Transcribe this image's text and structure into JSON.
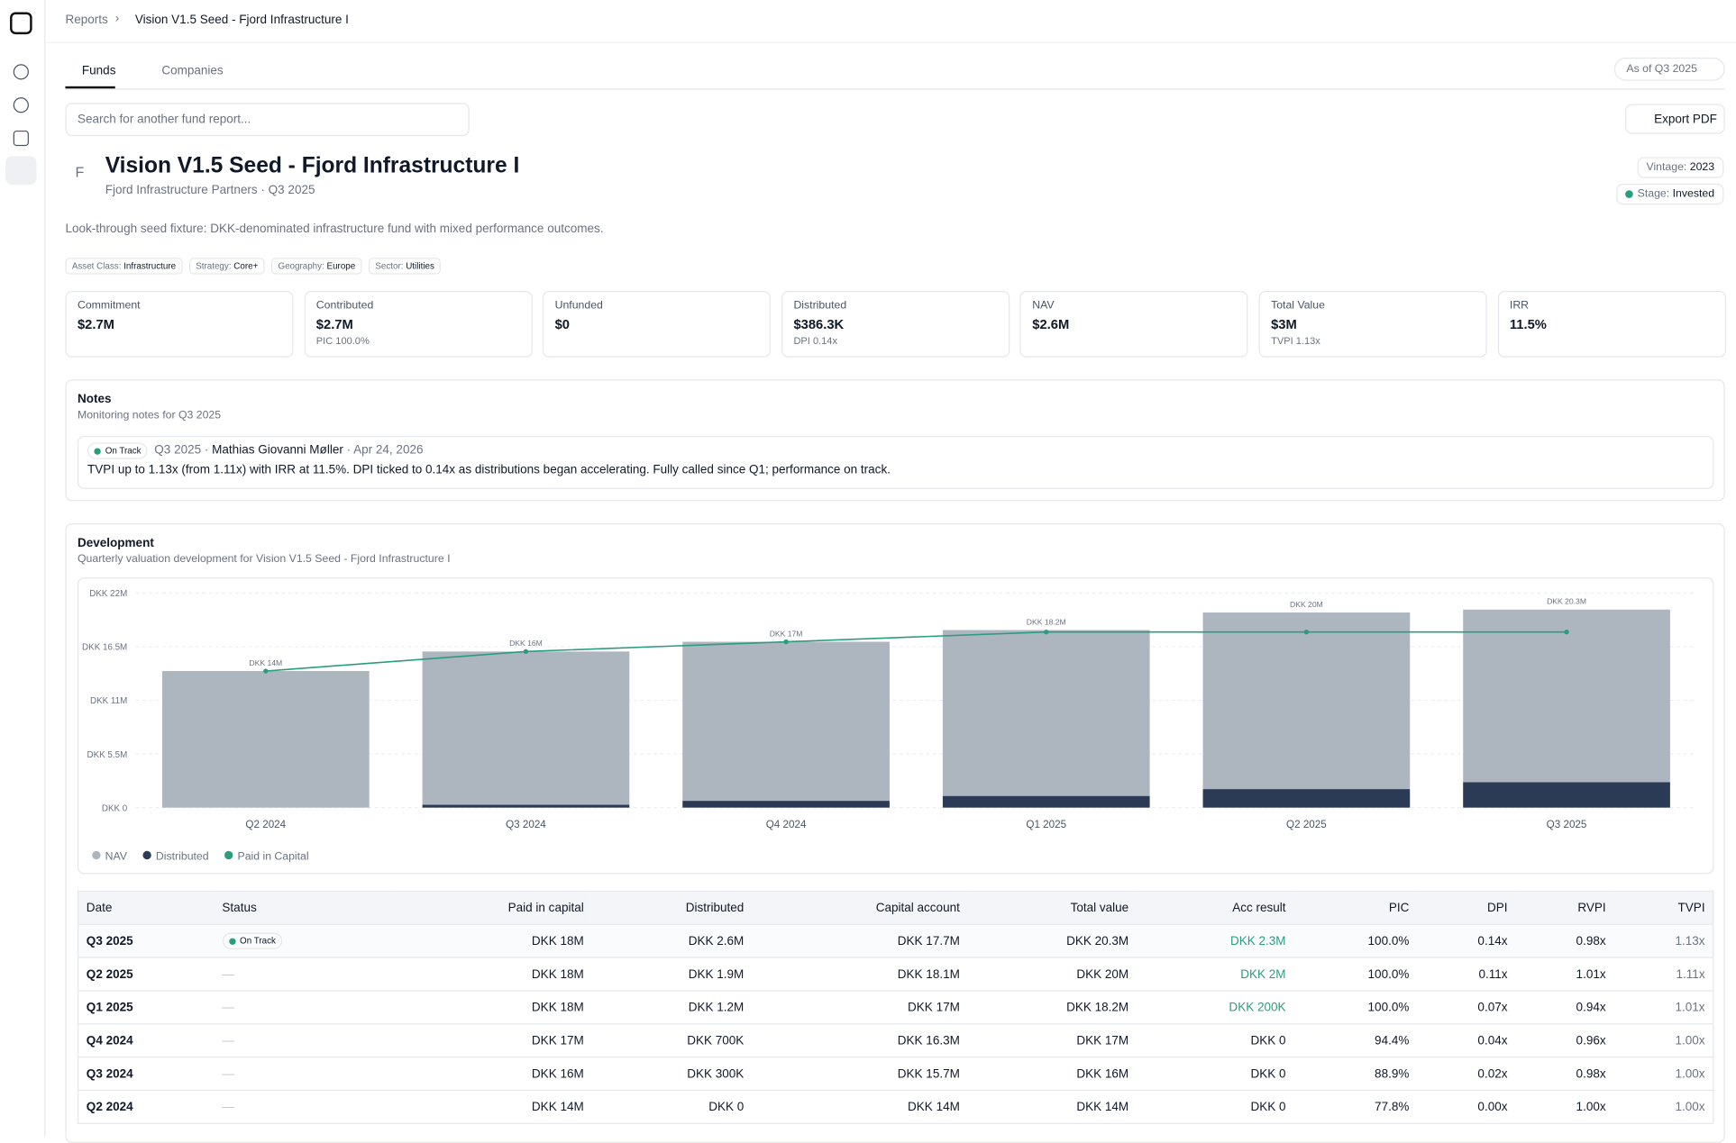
{
  "breadcrumb": [
    "Reports",
    "Vision V1.5 Seed - Fjord Infrastructure I"
  ],
  "tabs": [
    "Funds",
    "Companies"
  ],
  "as_of": "As of Q3 2025",
  "search_placeholder": "Search for another fund report...",
  "export": "Export PDF",
  "fund": {
    "initial": "F",
    "title": "Vision V1.5 Seed - Fjord Infrastructure I",
    "subtitle": "Fjord Infrastructure Partners · Q3 2025",
    "description": "Look-through seed fixture: DKK-denominated infrastructure fund with mixed performance outcomes.",
    "vintage": {
      "label": "Vintage:",
      "value": "2023"
    },
    "stage": {
      "label": "Stage:",
      "value": "Invested"
    },
    "tags": [
      {
        "label": "Asset Class:",
        "value": "Infrastructure"
      },
      {
        "label": "Strategy:",
        "value": "Core+"
      },
      {
        "label": "Geography:",
        "value": "Europe"
      },
      {
        "label": "Sector:",
        "value": "Utilities"
      }
    ]
  },
  "metrics": [
    {
      "label": "Commitment",
      "value": "$2.7M"
    },
    {
      "label": "Contributed",
      "value": "$2.7M",
      "sub": "PIC 100.0%"
    },
    {
      "label": "Unfunded",
      "value": "$0"
    },
    {
      "label": "Distributed",
      "value": "$386.3K",
      "sub": "DPI 0.14x"
    },
    {
      "label": "NAV",
      "value": "$2.6M"
    },
    {
      "label": "Total Value",
      "value": "$3M",
      "sub": "TVPI 1.13x"
    },
    {
      "label": "IRR",
      "value": "11.5%"
    }
  ],
  "notes": {
    "title": "Notes",
    "subtitle": "Monitoring notes for Q3 2025",
    "items": [
      {
        "status": "On Track",
        "quarter": "Q3 2025",
        "author": "Mathias Giovanni Møller",
        "date": "Apr 24, 2026",
        "text": "TVPI up to 1.13x (from 1.11x) with IRR at 11.5%. DPI ticked to 0.14x as distributions began accelerating. Fully called since Q1; performance on track."
      }
    ]
  },
  "development": {
    "title": "Development",
    "subtitle": "Quarterly valuation development for Vision V1.5 Seed - Fjord Infrastructure I"
  },
  "chart_data": {
    "type": "bar",
    "categories": [
      "Q2 2024",
      "Q3 2024",
      "Q4 2024",
      "Q1 2025",
      "Q2 2025",
      "Q3 2025"
    ],
    "series": [
      {
        "name": "NAV",
        "color": "#adb5bf",
        "values": [
          14,
          15.7,
          16.3,
          17,
          18.1,
          17.7
        ]
      },
      {
        "name": "Distributed",
        "color": "#2b3a55",
        "values": [
          0,
          0.3,
          0.7,
          1.2,
          1.9,
          2.6
        ]
      },
      {
        "name": "Paid in Capital",
        "color": "#2a9d7f",
        "type": "line",
        "values": [
          14,
          16,
          17,
          18,
          18,
          18
        ]
      }
    ],
    "totals": {
      "values": [
        14,
        16,
        17,
        18.2,
        20,
        20.3
      ],
      "value_labels": [
        "DKK 14M",
        "DKK 16M",
        "DKK 17M",
        "DKK 18.2M",
        "DKK 20M",
        "DKK 20.3M"
      ]
    },
    "ylim": [
      0,
      22
    ],
    "yticks": [
      {
        "value": 0,
        "label": "DKK 0"
      },
      {
        "value": 5.5,
        "label": "DKK 5.5M"
      },
      {
        "value": 11,
        "label": "DKK 11M"
      },
      {
        "value": 16.5,
        "label": "DKK 16.5M"
      },
      {
        "value": 22,
        "label": "DKK 22M"
      }
    ],
    "grid": true,
    "stacked": true,
    "legend": "bottom-left"
  },
  "table": {
    "columns": [
      "Date",
      "Status",
      "Paid in capital",
      "Distributed",
      "Capital account",
      "Total value",
      "Acc result",
      "PIC",
      "DPI",
      "RVPI",
      "TVPI"
    ],
    "rows": [
      [
        "Q3 2025",
        "On Track",
        "DKK 18M",
        "DKK 2.6M",
        "DKK 17.7M",
        "DKK 20.3M",
        "DKK 2.3M",
        "100.0%",
        "0.14x",
        "0.98x",
        "1.13x"
      ],
      [
        "Q2 2025",
        "—",
        "DKK 18M",
        "DKK 1.9M",
        "DKK 18.1M",
        "DKK 20M",
        "DKK 2M",
        "100.0%",
        "0.11x",
        "1.01x",
        "1.11x"
      ],
      [
        "Q1 2025",
        "—",
        "DKK 18M",
        "DKK 1.2M",
        "DKK 17M",
        "DKK 18.2M",
        "DKK 200K",
        "100.0%",
        "0.07x",
        "0.94x",
        "1.01x"
      ],
      [
        "Q4 2024",
        "—",
        "DKK 17M",
        "DKK 700K",
        "DKK 16.3M",
        "DKK 17M",
        "DKK 0",
        "94.4%",
        "0.04x",
        "0.96x",
        "1.00x"
      ],
      [
        "Q3 2024",
        "—",
        "DKK 16M",
        "DKK 300K",
        "DKK 15.7M",
        "DKK 16M",
        "DKK 0",
        "88.9%",
        "0.02x",
        "0.98x",
        "1.00x"
      ],
      [
        "Q2 2024",
        "—",
        "DKK 14M",
        "DKK 0",
        "DKK 14M",
        "DKK 14M",
        "DKK 0",
        "77.8%",
        "0.00x",
        "1.00x",
        "1.00x"
      ]
    ]
  }
}
